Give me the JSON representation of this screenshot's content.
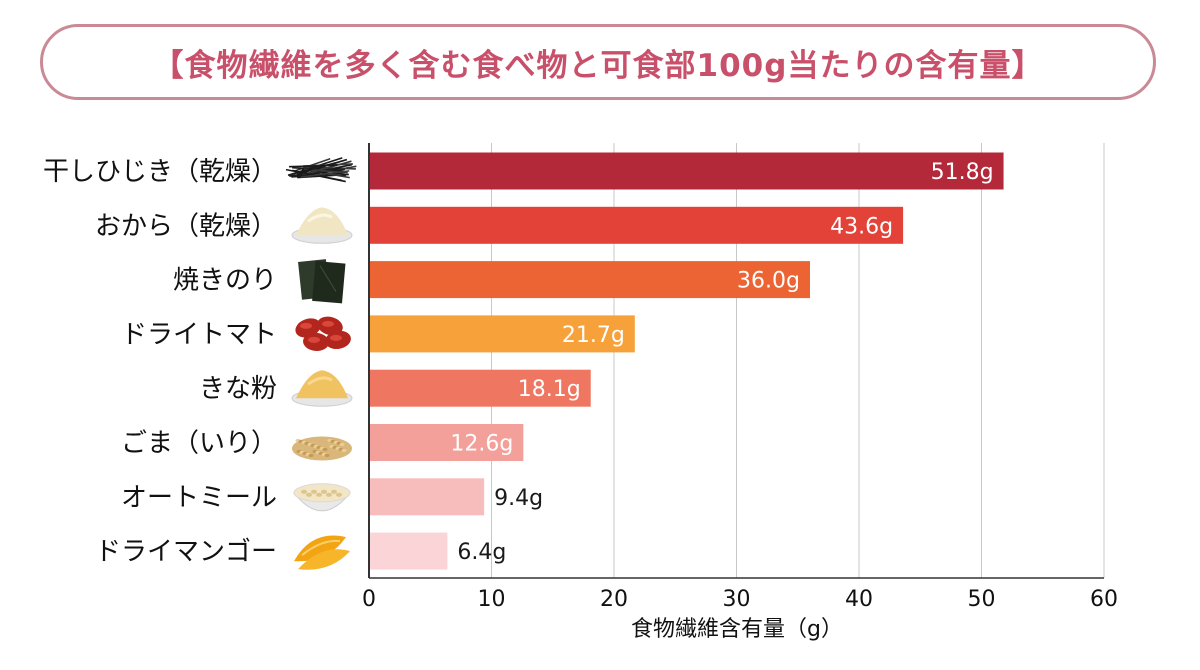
{
  "title": "【食物繊維を多く含む食べ物と可食部100g当たりの含有量】",
  "chart_data": {
    "type": "bar",
    "orientation": "horizontal",
    "categories": [
      "干しひじき（乾燥）",
      "おから（乾燥）",
      "焼きのり",
      "ドライトマト",
      "きな粉",
      "ごま（いり）",
      "オートミール",
      "ドライマンゴー"
    ],
    "values": [
      51.8,
      43.6,
      36.0,
      21.7,
      18.1,
      12.6,
      9.4,
      6.4
    ],
    "value_labels": [
      "51.8g",
      "43.6g",
      "36.0g",
      "21.7g",
      "18.1g",
      "12.6g",
      "9.4g",
      "6.4g"
    ],
    "icons": [
      "hijiki-icon",
      "okara-icon",
      "nori-icon",
      "dried-tomato-icon",
      "kinako-icon",
      "sesame-icon",
      "oatmeal-icon",
      "dried-mango-icon"
    ],
    "colors": [
      "#b3293a",
      "#e24238",
      "#ec6433",
      "#f7a13a",
      "#ef7660",
      "#f3a09a",
      "#f7bcbc",
      "#fad4d6"
    ],
    "label_colors": [
      "#ffffff",
      "#ffffff",
      "#ffffff",
      "#ffffff",
      "#ffffff",
      "#ffffff",
      "#1a1a1a",
      "#1a1a1a"
    ],
    "xlabel": "食物繊維含有量（g）",
    "xlim": [
      0,
      60
    ],
    "xticks": [
      0,
      10,
      20,
      30,
      40,
      50,
      60
    ],
    "grid": true
  }
}
